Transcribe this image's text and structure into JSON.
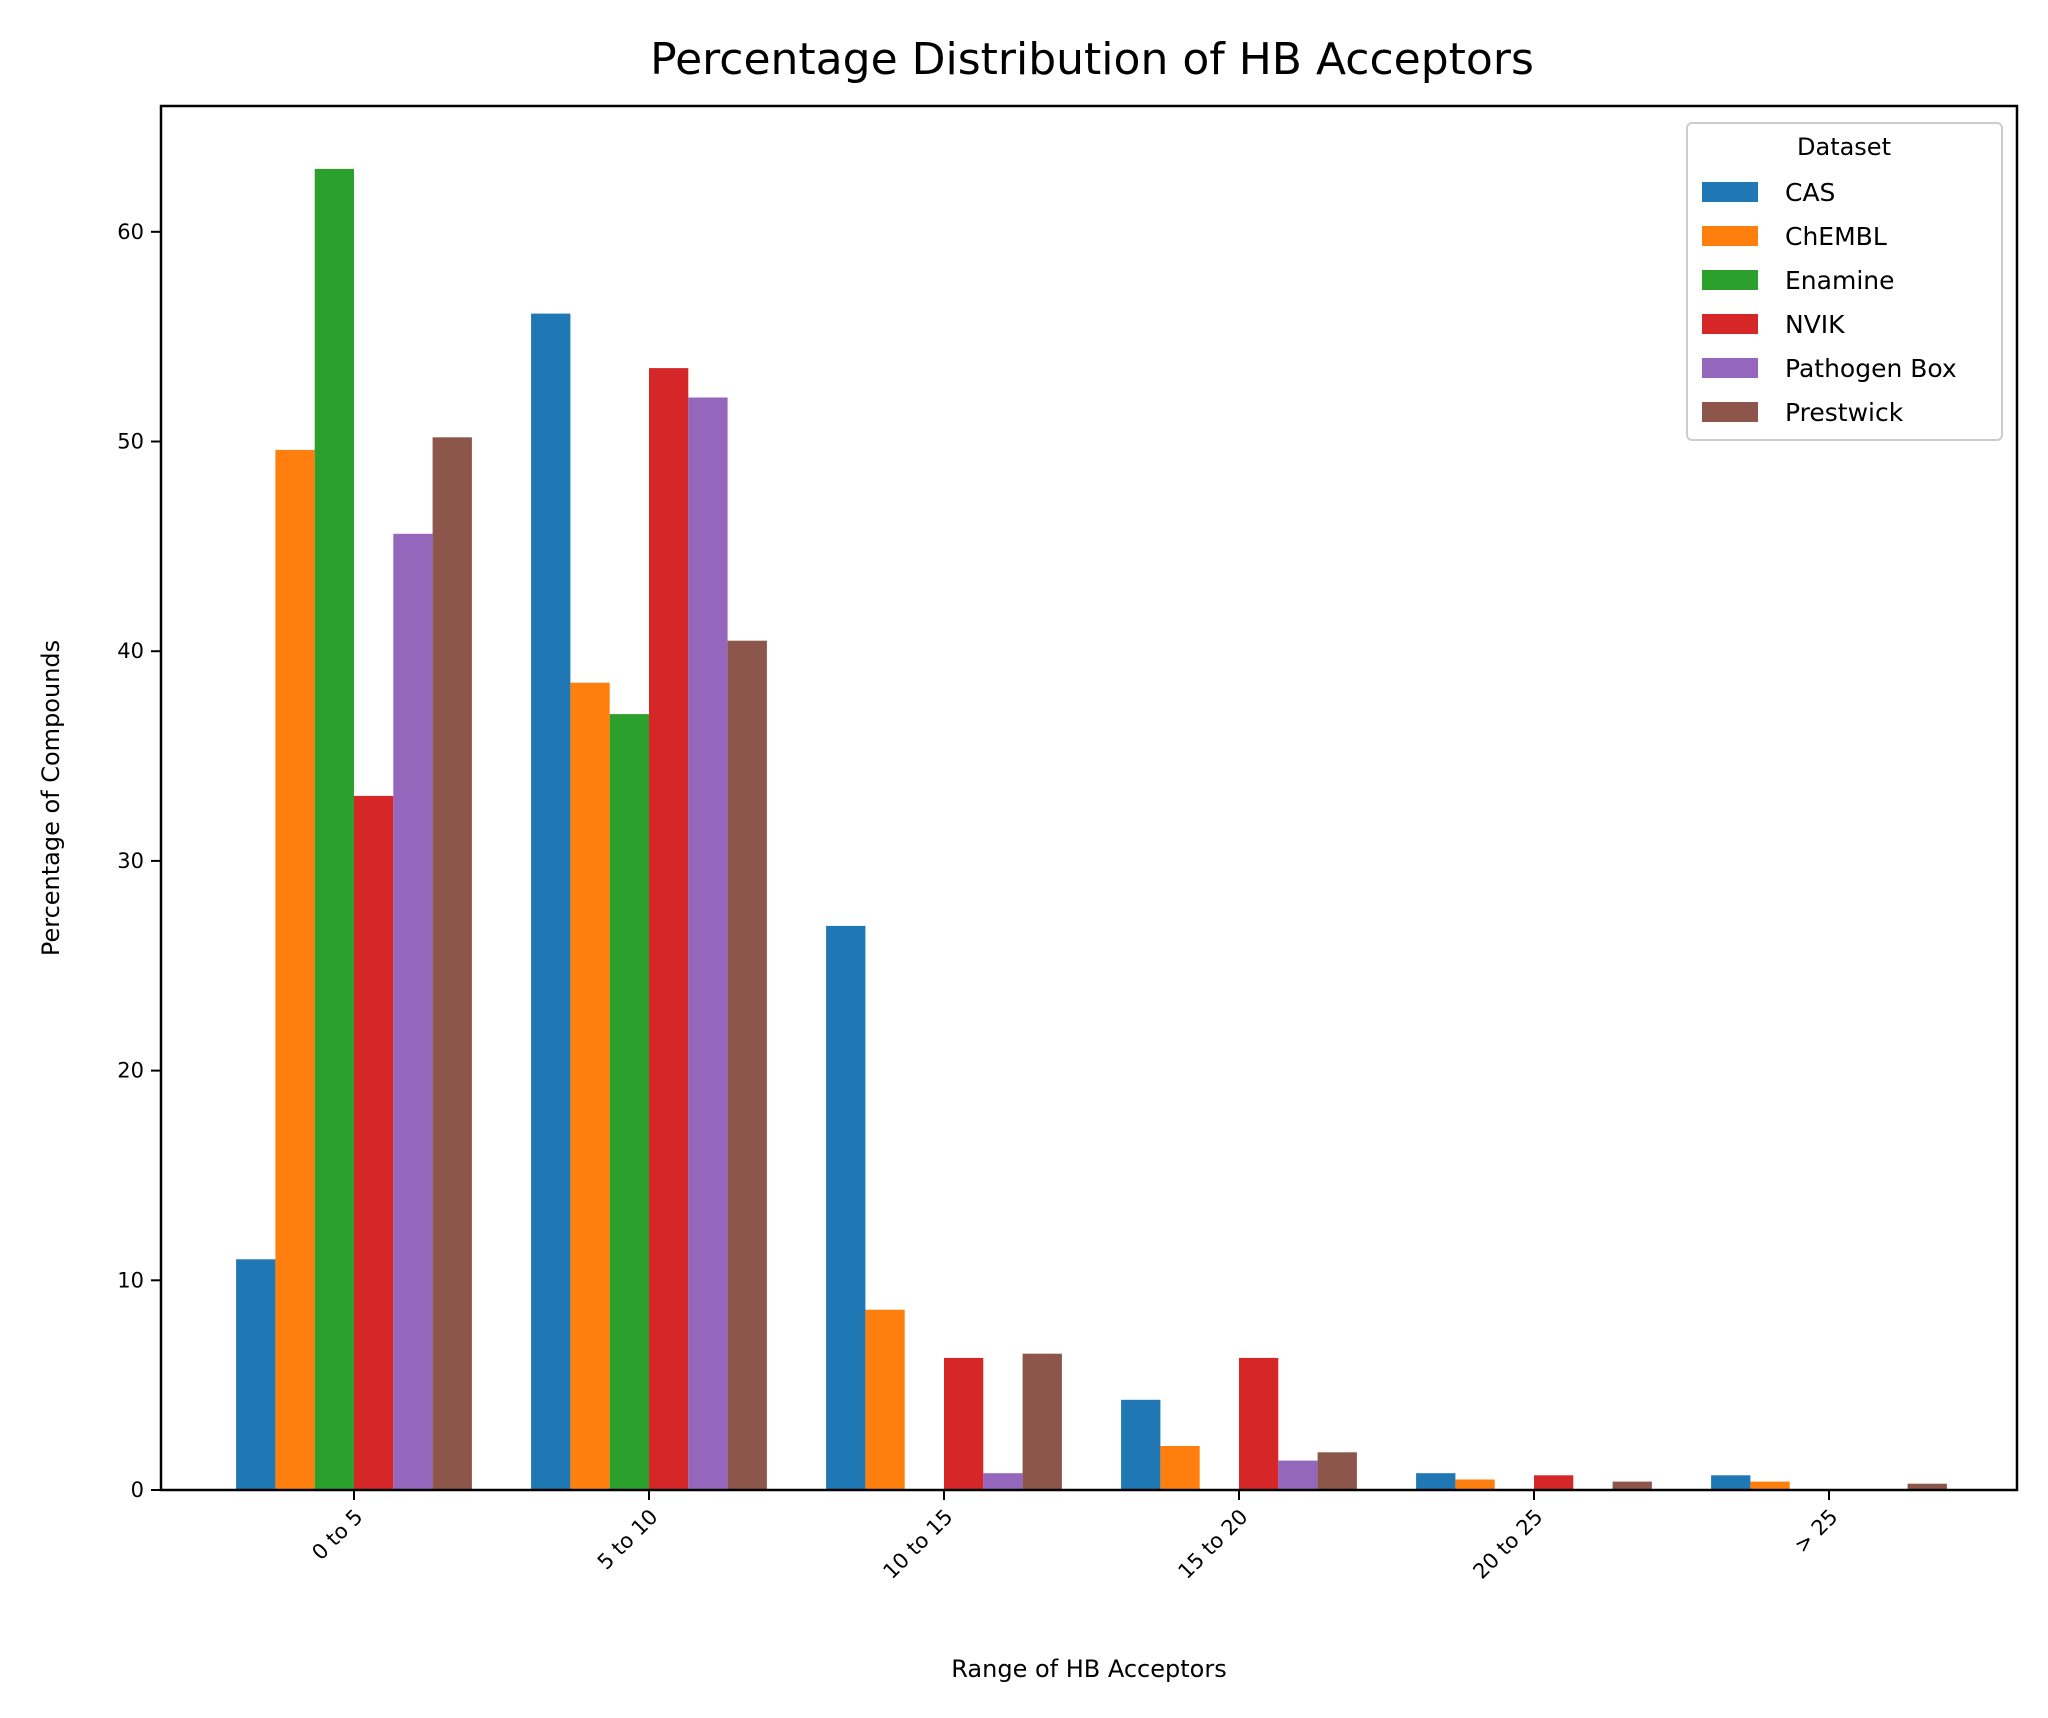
{
  "chart_data": {
    "type": "bar",
    "title": "Percentage Distribution of HB Acceptors",
    "xlabel": "Range of HB Acceptors",
    "ylabel": "Percentage of Compounds",
    "categories": [
      "0 to 5",
      "5 to 10",
      "10 to 15",
      "15 to 20",
      "20 to 25",
      "> 25"
    ],
    "ylim": [
      0,
      66
    ],
    "yticks": [
      0,
      10,
      20,
      30,
      40,
      50,
      60
    ],
    "grid": false,
    "legend": {
      "title": "Dataset",
      "position": "top-right"
    },
    "series": [
      {
        "name": "CAS",
        "color": "#1f77b4",
        "values": [
          11.0,
          56.1,
          26.9,
          4.3,
          0.8,
          0.7
        ]
      },
      {
        "name": "ChEMBL",
        "color": "#ff7f0e",
        "values": [
          49.6,
          38.5,
          8.6,
          2.1,
          0.5,
          0.4
        ]
      },
      {
        "name": "Enamine",
        "color": "#2ca02c",
        "values": [
          63.0,
          37.0,
          0.0,
          0.0,
          0.0,
          0.0
        ]
      },
      {
        "name": "NVIK",
        "color": "#d62728",
        "values": [
          33.1,
          53.5,
          6.3,
          6.3,
          0.7,
          0.0
        ]
      },
      {
        "name": "Pathogen Box",
        "color": "#9467bd",
        "values": [
          45.6,
          52.1,
          0.8,
          1.4,
          0.0,
          0.0
        ]
      },
      {
        "name": "Prestwick",
        "color": "#8c564b",
        "values": [
          50.2,
          40.5,
          6.5,
          1.8,
          0.4,
          0.3
        ]
      }
    ]
  }
}
